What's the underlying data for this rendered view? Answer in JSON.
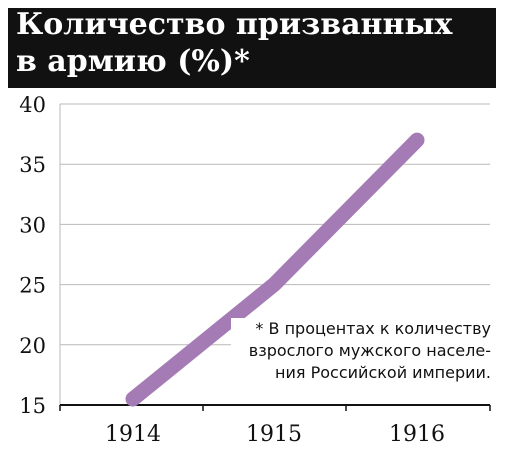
{
  "title": {
    "line1": "Количество призванных",
    "line2": "в армию (%)*"
  },
  "note": {
    "line1": "* В процентах к количеству",
    "line2": "взрослого мужского населе-",
    "line3": "ния Российской империи."
  },
  "chart_data": {
    "type": "line",
    "x": [
      "1914",
      "1915",
      "1916"
    ],
    "series": [
      {
        "values": [
          15.5,
          25,
          37
        ],
        "color": "#a57bb5"
      }
    ],
    "ylim": [
      15,
      40
    ],
    "yticks": [
      15,
      20,
      25,
      30,
      35,
      40
    ],
    "grid": true,
    "xlabel": "",
    "ylabel": ""
  },
  "colors": {
    "grid": "#b9b9b9",
    "axis": "#111111",
    "title_bg": "#111111",
    "title_text": "#ffffff",
    "line": "#a57bb5"
  }
}
